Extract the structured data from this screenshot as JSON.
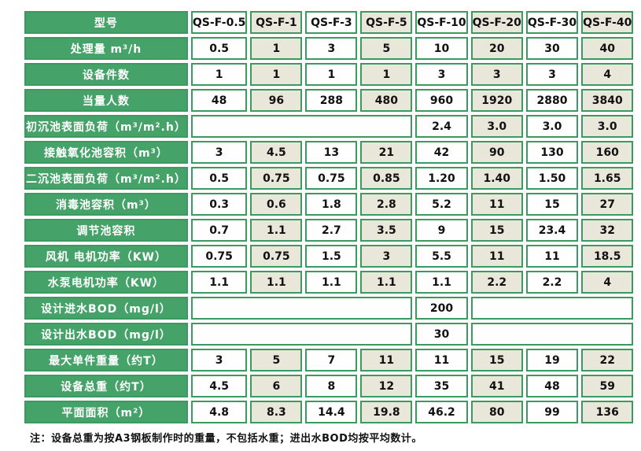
{
  "colors": {
    "label_green": "#45a269",
    "border_green": "#3a9a60",
    "beige": "#e9e6da",
    "cell_white": "#fefefe",
    "text_dark": "#111111"
  },
  "chart_data": {
    "type": "table",
    "header": {
      "label": "型号",
      "models": [
        "QS-F-0.5",
        "QS-F-1",
        "QS-F-3",
        "QS-F-5",
        "QS-F-10",
        "QS-F-20",
        "QS-F-30",
        "QS-F-40"
      ]
    },
    "rows": [
      {
        "label": "处理量 m³/h",
        "cells": [
          "0.5",
          "1",
          "3",
          "5",
          "10",
          "20",
          "30",
          "40"
        ]
      },
      {
        "label": "设备件数",
        "cells": [
          "1",
          "1",
          "1",
          "1",
          "3",
          "3",
          "3",
          "4"
        ]
      },
      {
        "label": "当量人数",
        "cells": [
          "48",
          "96",
          "288",
          "480",
          "960",
          "1920",
          "2880",
          "3840"
        ]
      },
      {
        "label": "初沉池表面负荷（m³/m².h）",
        "cells": [
          {
            "text": "",
            "span": 4
          },
          "2.4",
          "3.0",
          "3.0",
          "3.0"
        ]
      },
      {
        "label": "接触氧化池容积（m³）",
        "cells": [
          "3",
          "4.5",
          "13",
          "21",
          "42",
          "90",
          "130",
          "160"
        ]
      },
      {
        "label": "二沉池表面负荷（m³/m².h）",
        "cells": [
          "0.5",
          "0.75",
          "0.75",
          "0.85",
          "1.20",
          "1.40",
          "1.50",
          "1.65"
        ]
      },
      {
        "label": "消毒池容积（m³）",
        "cells": [
          "0.3",
          "0.6",
          "1.8",
          "2.8",
          "5.2",
          "11",
          "15",
          "27"
        ]
      },
      {
        "label": "调节池容积",
        "cells": [
          "0.7",
          "1.1",
          "2.7",
          "3.5",
          "9",
          "15",
          "23.4",
          "32"
        ]
      },
      {
        "label": "风机 电机功率（KW）",
        "cells": [
          "0.75",
          "0.75",
          "1.5",
          "3",
          "5.5",
          "11",
          "11",
          "18.5"
        ]
      },
      {
        "label": "水泵电机功率（KW）",
        "cells": [
          "1.1",
          "1.1",
          "1.1",
          "1.1",
          "1.1",
          "2.2",
          "2.2",
          "4"
        ]
      },
      {
        "label": "设计进水BOD（mg/l）",
        "cells": [
          {
            "text": "",
            "span": 4
          },
          "200",
          {
            "text": "",
            "span": 3
          }
        ]
      },
      {
        "label": "设计出水BOD（mg/l）",
        "cells": [
          {
            "text": "",
            "span": 4
          },
          "30",
          {
            "text": "",
            "span": 3
          }
        ]
      },
      {
        "label": "最大单件重量（约T）",
        "cells": [
          "3",
          "5",
          "7",
          "11",
          "11",
          "15",
          "19",
          "22"
        ]
      },
      {
        "label": "设备总重（约T）",
        "cells": [
          "4.5",
          "6",
          "8",
          "12",
          "35",
          "41",
          "48",
          "59"
        ]
      },
      {
        "label": "平面面积（m²）",
        "cells": [
          "4.8",
          "8.3",
          "14.4",
          "19.8",
          "46.2",
          "80",
          "99",
          "136"
        ]
      }
    ],
    "note": "注：设备总重为按A3钢板制作时的重量，不包括水重；进出水BOD均按平均数计。"
  }
}
